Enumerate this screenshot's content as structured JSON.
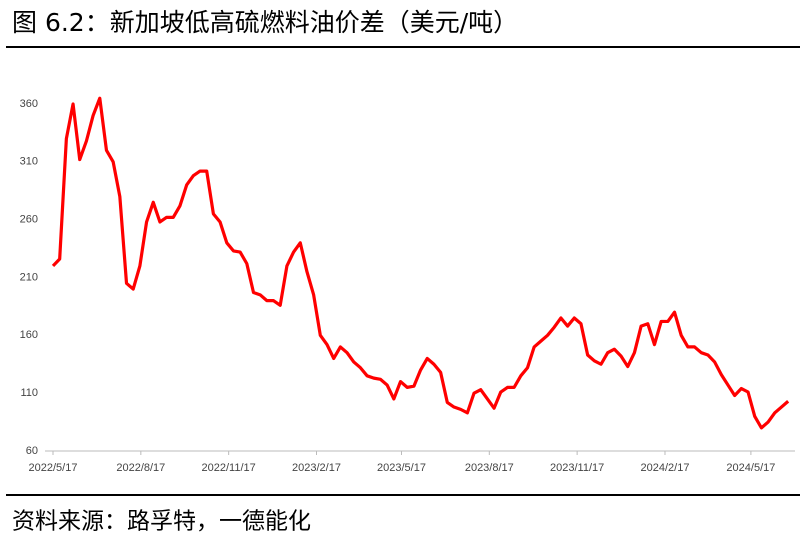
{
  "chart_data": {
    "type": "line",
    "title": "图 6.2：新加坡低高硫燃料油价差（美元/吨）",
    "source": "资料来源：路孚特，一德能化",
    "x": [
      "2022/5/17",
      "2022/5/24",
      "2022/5/31",
      "2022/6/7",
      "2022/6/14",
      "2022/6/21",
      "2022/6/28",
      "2022/7/5",
      "2022/7/12",
      "2022/7/19",
      "2022/7/26",
      "2022/8/2",
      "2022/8/9",
      "2022/8/16",
      "2022/8/23",
      "2022/8/30",
      "2022/9/6",
      "2022/9/13",
      "2022/9/20",
      "2022/9/27",
      "2022/10/4",
      "2022/10/11",
      "2022/10/18",
      "2022/10/25",
      "2022/11/1",
      "2022/11/8",
      "2022/11/15",
      "2022/11/22",
      "2022/11/29",
      "2022/12/6",
      "2022/12/13",
      "2022/12/20",
      "2022/12/27",
      "2023/1/3",
      "2023/1/10",
      "2023/1/17",
      "2023/1/24",
      "2023/1/31",
      "2023/2/7",
      "2023/2/14",
      "2023/2/21",
      "2023/2/28",
      "2023/3/7",
      "2023/3/14",
      "2023/3/21",
      "2023/3/28",
      "2023/4/4",
      "2023/4/11",
      "2023/4/18",
      "2023/4/25",
      "2023/5/2",
      "2023/5/9",
      "2023/5/16",
      "2023/5/23",
      "2023/5/30",
      "2023/6/6",
      "2023/6/13",
      "2023/6/20",
      "2023/6/27",
      "2023/7/4",
      "2023/7/11",
      "2023/7/18",
      "2023/7/25",
      "2023/8/1",
      "2023/8/8",
      "2023/8/15",
      "2023/8/22",
      "2023/8/29",
      "2023/9/5",
      "2023/9/12",
      "2023/9/19",
      "2023/9/26",
      "2023/10/3",
      "2023/10/10",
      "2023/10/17",
      "2023/10/24",
      "2023/10/31",
      "2023/11/7",
      "2023/11/14",
      "2023/11/21",
      "2023/11/28",
      "2023/12/5",
      "2023/12/12",
      "2023/12/19",
      "2023/12/26",
      "2024/1/2",
      "2024/1/9",
      "2024/1/16",
      "2024/1/23",
      "2024/1/30",
      "2024/2/6",
      "2024/2/13",
      "2024/2/20",
      "2024/2/27",
      "2024/3/5",
      "2024/3/12",
      "2024/3/19",
      "2024/3/26",
      "2024/4/2",
      "2024/4/9",
      "2024/4/16",
      "2024/4/23",
      "2024/4/30",
      "2024/5/7",
      "2024/5/14",
      "2024/5/21",
      "2024/5/28",
      "2024/6/4",
      "2024/6/11",
      "2024/6/18",
      "2024/6/25"
    ],
    "series": [
      {
        "color": "#ff0000",
        "values": [
          220,
          226,
          330,
          360,
          312,
          328,
          350,
          365,
          320,
          310,
          280,
          205,
          200,
          220,
          258,
          275,
          258,
          262,
          262,
          272,
          290,
          298,
          302,
          302,
          265,
          258,
          240,
          233,
          232,
          222,
          197,
          195,
          190,
          190,
          186,
          220,
          232,
          240,
          215,
          195,
          160,
          152,
          140,
          150,
          145,
          137,
          132,
          125,
          123,
          122,
          117,
          105,
          120,
          115,
          116,
          130,
          140,
          135,
          128,
          102,
          98,
          96,
          93,
          110,
          113,
          105,
          97,
          111,
          115,
          115,
          125,
          132,
          150,
          155,
          160,
          167,
          175,
          168,
          175,
          170,
          143,
          138,
          135,
          145,
          148,
          142,
          133,
          145,
          168,
          170,
          152,
          172,
          172,
          180,
          160,
          150,
          150,
          145,
          143,
          137,
          126,
          117,
          108,
          114,
          111,
          90,
          80,
          85,
          93,
          98,
          103
        ]
      }
    ],
    "xlim": [
      "2022/5/17",
      "2024/6/28"
    ],
    "xticks": [
      "2022/5/17",
      "2022/8/17",
      "2022/11/17",
      "2023/2/17",
      "2023/5/17",
      "2023/8/17",
      "2023/11/17",
      "2024/2/17",
      "2024/5/17"
    ],
    "ylim": [
      60,
      390
    ],
    "yticks": [
      60,
      110,
      160,
      210,
      260,
      310,
      360
    ],
    "grid": false
  }
}
